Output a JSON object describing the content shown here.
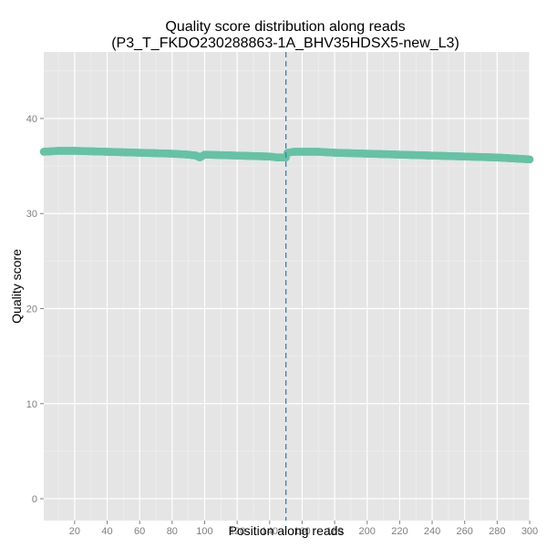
{
  "chart_data": {
    "type": "scatter",
    "title": "Quality score distribution along reads",
    "subtitle": "(P3_T_FKDO230288863-1A_BHV35HDSX5-new_L3)",
    "xlabel": "Position along reads",
    "ylabel": "Quality score",
    "xlim": [
      1,
      300
    ],
    "ylim": [
      -2.3,
      47
    ],
    "xticks": [
      20,
      40,
      60,
      80,
      100,
      120,
      140,
      160,
      180,
      200,
      220,
      240,
      260,
      280,
      300
    ],
    "yticks": [
      0,
      10,
      20,
      30,
      40
    ],
    "grid": true,
    "legend": "none",
    "read_boundary_x": 150,
    "series": [
      {
        "color": "#66c2a5",
        "segments": [
          {
            "x": [
              1,
              10,
              20,
              40,
              60,
              80,
              90,
              95,
              97,
              100,
              120,
              140,
              145,
              148,
              150
            ],
            "y": [
              36.5,
              36.6,
              36.6,
              36.5,
              36.4,
              36.3,
              36.2,
              36.1,
              35.9,
              36.2,
              36.1,
              36.0,
              35.9,
              35.9,
              35.9
            ]
          },
          {
            "x": [
              151,
              155,
              170,
              180,
              200,
              220,
              240,
              260,
              280,
              290,
              300
            ],
            "y": [
              36.4,
              36.5,
              36.5,
              36.4,
              36.3,
              36.2,
              36.1,
              36.0,
              35.9,
              35.8,
              35.7
            ]
          }
        ]
      }
    ],
    "colors": {
      "panel": "#e5e5e5",
      "grid_major": "#ffffff",
      "grid_minor": "#f2f2f2",
      "boundary_line": "#3a7fb5"
    }
  }
}
